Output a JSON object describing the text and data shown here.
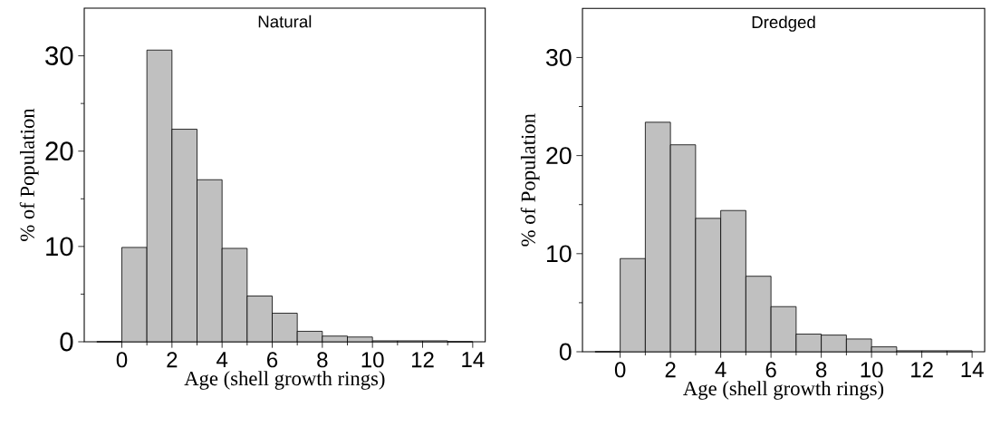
{
  "chart_data": [
    {
      "type": "histogram",
      "title": "Natural",
      "xlabel": "Age (shell growth rings)",
      "ylabel": "% of Population",
      "color": "#c0c0c0",
      "bins": [
        -1,
        0,
        1,
        2,
        3,
        4,
        5,
        6,
        7,
        8,
        9,
        10,
        11,
        12,
        13,
        14
      ],
      "values": [
        0,
        9.9,
        30.6,
        22.3,
        17.0,
        9.8,
        4.8,
        3.0,
        1.1,
        0.6,
        0.5,
        0.1,
        0.1,
        0.1,
        0
      ],
      "xlim": [
        -1.5,
        14.5
      ],
      "ylim": [
        0,
        35
      ],
      "xticks": [
        0,
        2,
        4,
        6,
        8,
        10,
        12,
        14
      ],
      "yticks": [
        0,
        10,
        20,
        30
      ]
    },
    {
      "type": "histogram",
      "title": "Dredged",
      "xlabel": "Age (shell growth rings)",
      "ylabel": "% of Population",
      "color": "#c0c0c0",
      "bins": [
        -1,
        0,
        1,
        2,
        3,
        4,
        5,
        6,
        7,
        8,
        9,
        10,
        11,
        12,
        13,
        14
      ],
      "values": [
        0,
        9.5,
        23.4,
        21.1,
        13.6,
        14.4,
        7.7,
        4.6,
        1.8,
        1.7,
        1.3,
        0.5,
        0.1,
        0.1,
        0.1
      ],
      "xlim": [
        -1.5,
        14.5
      ],
      "ylim": [
        0,
        35
      ],
      "xticks": [
        0,
        2,
        4,
        6,
        8,
        10,
        12,
        14
      ],
      "yticks": [
        0,
        10,
        20,
        30
      ]
    }
  ]
}
